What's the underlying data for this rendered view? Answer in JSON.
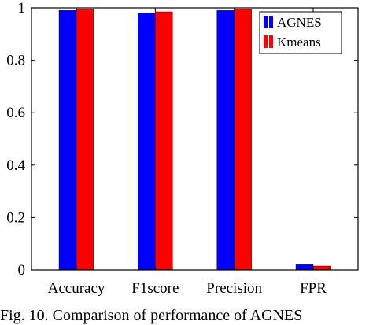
{
  "chart_data": {
    "type": "bar",
    "categories": [
      "Accuracy",
      "F1score",
      "Precision",
      "FPR"
    ],
    "series": [
      {
        "name": "AGNES",
        "color": "#0000ff",
        "values": [
          0.99,
          0.98,
          0.99,
          0.02
        ]
      },
      {
        "name": "Kmeans",
        "color": "#ff0000",
        "values": [
          0.995,
          0.985,
          0.995,
          0.015
        ]
      }
    ],
    "ylim": [
      0,
      1
    ],
    "yticks": [
      {
        "value": 0,
        "label": "0"
      },
      {
        "value": 0.2,
        "label": "0.2"
      },
      {
        "value": 0.4,
        "label": "0.4"
      },
      {
        "value": 0.6,
        "label": "0.6"
      },
      {
        "value": 0.8,
        "label": "0.8"
      },
      {
        "value": 1,
        "label": "1"
      }
    ],
    "legend_position": "top-right",
    "grid": false
  },
  "caption": "Fig. 10. Comparison of performance of AGNES"
}
